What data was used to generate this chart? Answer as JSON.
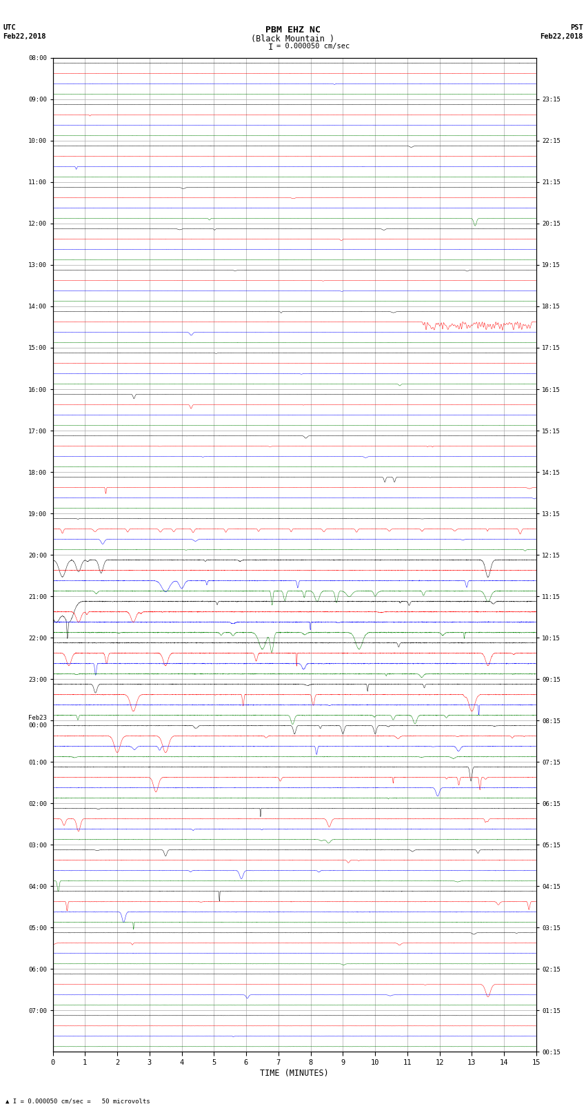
{
  "title_line1": "PBM EHZ NC",
  "title_line2": "(Black Mountain )",
  "scale_label": "= 0.000050 cm/sec",
  "left_header_line1": "UTC",
  "left_header_line2": "Feb22,2018",
  "right_header_line1": "PST",
  "right_header_line2": "Feb22,2018",
  "xlabel": "TIME (MINUTES)",
  "footer_label": "= 0.000050 cm/sec =   50 microvolts",
  "utc_labels": [
    "08:00",
    "09:00",
    "10:00",
    "11:00",
    "12:00",
    "13:00",
    "14:00",
    "15:00",
    "16:00",
    "17:00",
    "18:00",
    "19:00",
    "20:00",
    "21:00",
    "22:00",
    "23:00",
    "Feb23\n00:00",
    "01:00",
    "02:00",
    "03:00",
    "04:00",
    "05:00",
    "06:00",
    "07:00"
  ],
  "pst_labels": [
    "00:15",
    "01:15",
    "02:15",
    "03:15",
    "04:15",
    "05:15",
    "06:15",
    "07:15",
    "08:15",
    "09:15",
    "10:15",
    "11:15",
    "12:15",
    "13:15",
    "14:15",
    "15:15",
    "16:15",
    "17:15",
    "18:15",
    "19:15",
    "20:15",
    "21:15",
    "22:15",
    "23:15"
  ],
  "num_rows": 24,
  "minutes_per_row": 15,
  "trace_colors": [
    "black",
    "red",
    "blue",
    "green"
  ],
  "bg_color": "#ffffff",
  "grid_color": "#aaaaaa",
  "plot_bg": "#ffffff"
}
